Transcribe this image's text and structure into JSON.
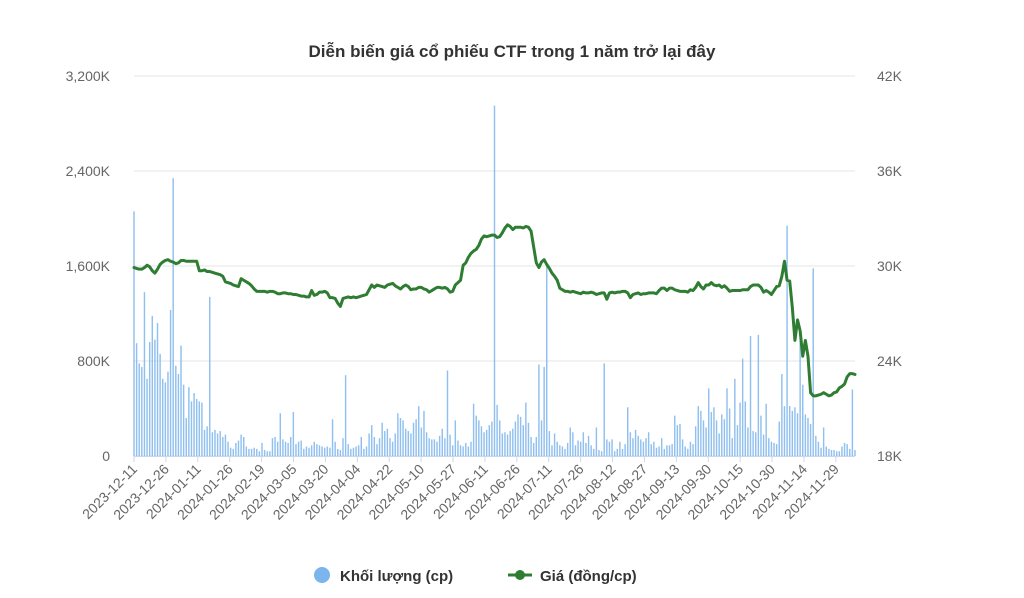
{
  "chart_data": {
    "type": "bar+line",
    "title": "Diễn biến giá cổ phiếu CTF trong 1 năm trở lại đây",
    "y_left": {
      "ticks": [
        "0",
        "800K",
        "1,600K",
        "2,400K",
        "3,200K"
      ],
      "range": [
        0,
        3200000
      ]
    },
    "y_right": {
      "ticks": [
        "18K",
        "24K",
        "30K",
        "36K",
        "42K"
      ],
      "range": [
        18000,
        42000
      ]
    },
    "x_tick_labels": [
      "2023-12-11",
      "2023-12-26",
      "2024-01-11",
      "2024-01-26",
      "2024-02-19",
      "2024-03-05",
      "2024-03-20",
      "2024-04-04",
      "2024-04-22",
      "2024-05-10",
      "2024-05-27",
      "2024-06-11",
      "2024-06-26",
      "2024-07-11",
      "2024-07-26",
      "2024-08-12",
      "2024-08-27",
      "2024-09-13",
      "2024-09-30",
      "2024-10-15",
      "2024-10-30",
      "2024-11-14",
      "2024-11-29"
    ],
    "grid": true,
    "legend_position": "bottom",
    "series": [
      {
        "name": "Khối lượng (cp)",
        "kind": "bar",
        "axis": "left",
        "color": "#7cb5ec",
        "values": [
          2060000,
          950000,
          780000,
          750000,
          1380000,
          650000,
          960000,
          1180000,
          980000,
          1120000,
          860000,
          650000,
          620000,
          710000,
          1230000,
          2340000,
          760000,
          690000,
          930000,
          600000,
          320000,
          580000,
          460000,
          530000,
          480000,
          460000,
          450000,
          220000,
          250000,
          1340000,
          200000,
          220000,
          190000,
          210000,
          160000,
          180000,
          120000,
          70000,
          60000,
          110000,
          130000,
          180000,
          160000,
          80000,
          60000,
          60000,
          70000,
          60000,
          40000,
          110000,
          50000,
          40000,
          40000,
          150000,
          160000,
          120000,
          360000,
          140000,
          120000,
          110000,
          160000,
          370000,
          100000,
          120000,
          130000,
          60000,
          80000,
          70000,
          90000,
          120000,
          100000,
          90000,
          80000,
          70000,
          80000,
          70000,
          310000,
          120000,
          60000,
          50000,
          150000,
          680000,
          100000,
          60000,
          70000,
          80000,
          90000,
          160000,
          60000,
          80000,
          190000,
          260000,
          160000,
          100000,
          150000,
          280000,
          210000,
          230000,
          150000,
          120000,
          190000,
          360000,
          320000,
          300000,
          230000,
          210000,
          190000,
          280000,
          310000,
          420000,
          240000,
          380000,
          200000,
          150000,
          140000,
          140000,
          120000,
          170000,
          230000,
          150000,
          720000,
          180000,
          90000,
          300000,
          130000,
          90000,
          80000,
          110000,
          80000,
          120000,
          440000,
          340000,
          300000,
          250000,
          200000,
          220000,
          260000,
          290000,
          2950000,
          430000,
          300000,
          190000,
          200000,
          180000,
          210000,
          230000,
          290000,
          350000,
          330000,
          260000,
          450000,
          280000,
          160000,
          110000,
          160000,
          770000,
          300000,
          750000,
          1610000,
          210000,
          90000,
          190000,
          120000,
          90000,
          80000,
          60000,
          110000,
          240000,
          200000,
          90000,
          130000,
          120000,
          200000,
          110000,
          170000,
          90000,
          60000,
          240000,
          50000,
          40000,
          780000,
          140000,
          120000,
          140000,
          40000,
          60000,
          120000,
          60000,
          100000,
          410000,
          200000,
          150000,
          220000,
          170000,
          140000,
          120000,
          150000,
          200000,
          100000,
          120000,
          70000,
          80000,
          150000,
          60000,
          90000,
          90000,
          100000,
          340000,
          260000,
          270000,
          140000,
          80000,
          60000,
          120000,
          100000,
          250000,
          420000,
          380000,
          300000,
          240000,
          570000,
          370000,
          410000,
          300000,
          190000,
          350000,
          310000,
          570000,
          400000,
          150000,
          650000,
          260000,
          450000,
          820000,
          460000,
          240000,
          1010000,
          210000,
          200000,
          1020000,
          340000,
          180000,
          440000,
          150000,
          120000,
          110000,
          100000,
          290000,
          690000,
          420000,
          1940000,
          420000,
          380000,
          410000,
          360000,
          970000,
          600000,
          350000,
          320000,
          270000,
          1580000,
          170000,
          120000,
          70000,
          240000,
          80000,
          60000,
          50000,
          50000,
          40000,
          40000,
          80000,
          110000,
          100000,
          60000,
          560000,
          50000
        ]
      },
      {
        "name": "Giá (đồng/cp)",
        "kind": "line",
        "axis": "right",
        "color": "#2e7d32",
        "values": [
          29900,
          29850,
          29800,
          29800,
          29900,
          30050,
          29950,
          29700,
          29550,
          29800,
          30100,
          30250,
          30350,
          30400,
          30300,
          30250,
          30150,
          30200,
          30350,
          30350,
          30300,
          30300,
          30300,
          30300,
          30300,
          29700,
          29700,
          29750,
          29650,
          29650,
          29600,
          29550,
          29500,
          29450,
          29350,
          29000,
          28950,
          28900,
          28800,
          28750,
          28700,
          29200,
          29100,
          29000,
          28900,
          28750,
          28550,
          28400,
          28400,
          28400,
          28400,
          28350,
          28400,
          28400,
          28350,
          28250,
          28250,
          28300,
          28300,
          28250,
          28250,
          28200,
          28200,
          28150,
          28100,
          28100,
          28050,
          28050,
          28450,
          28150,
          28200,
          28350,
          28350,
          28400,
          28300,
          28000,
          28000,
          27950,
          27650,
          27450,
          27950,
          28000,
          28050,
          28000,
          28050,
          28000,
          28050,
          28100,
          28150,
          28200,
          28500,
          28800,
          28650,
          28800,
          28750,
          28700,
          28650,
          28800,
          28850,
          28900,
          28750,
          28650,
          28550,
          28700,
          28800,
          28700,
          28500,
          28550,
          28550,
          28650,
          28650,
          28550,
          28500,
          28350,
          28450,
          28550,
          28650,
          28650,
          28600,
          28650,
          28550,
          28350,
          28400,
          28800,
          28950,
          29100,
          30050,
          30200,
          30550,
          30800,
          30950,
          31050,
          31300,
          31700,
          31900,
          31850,
          31900,
          31950,
          31950,
          31800,
          31850,
          32100,
          32400,
          32600,
          32500,
          32300,
          32450,
          32450,
          32450,
          32400,
          32500,
          32450,
          32200,
          31200,
          30200,
          29900,
          30250,
          30400,
          30100,
          29850,
          29550,
          29350,
          29100,
          28600,
          28500,
          28400,
          28400,
          28350,
          28400,
          28350,
          28300,
          28250,
          28350,
          28300,
          28300,
          28350,
          28300,
          28200,
          28250,
          28300,
          28300,
          27900,
          28300,
          28350,
          28300,
          28350,
          28350,
          28400,
          28400,
          28300,
          28000,
          28200,
          28250,
          28300,
          28200,
          28250,
          28250,
          28300,
          28300,
          28300,
          28250,
          28450,
          28600,
          28600,
          28450,
          28600,
          28600,
          28500,
          28450,
          28400,
          28400,
          28400,
          28350,
          28500,
          28450,
          28650,
          28950,
          28700,
          28550,
          28800,
          28800,
          28950,
          28800,
          28750,
          28800,
          28650,
          28750,
          28600,
          28400,
          28450,
          28450,
          28450,
          28450,
          28500,
          28500,
          28500,
          28700,
          28800,
          28800,
          28800,
          28650,
          28350,
          28450,
          28350,
          28200,
          28450,
          28700,
          28750,
          29350,
          30300,
          29100,
          29050,
          27400,
          25300,
          26600,
          25900,
          24300,
          25300,
          24300,
          22000,
          21800,
          21800,
          21850,
          21900,
          22000,
          21900,
          21800,
          21850,
          22000,
          22050,
          22300,
          22400,
          22550,
          23000,
          23200,
          23200,
          23150
        ]
      }
    ]
  }
}
